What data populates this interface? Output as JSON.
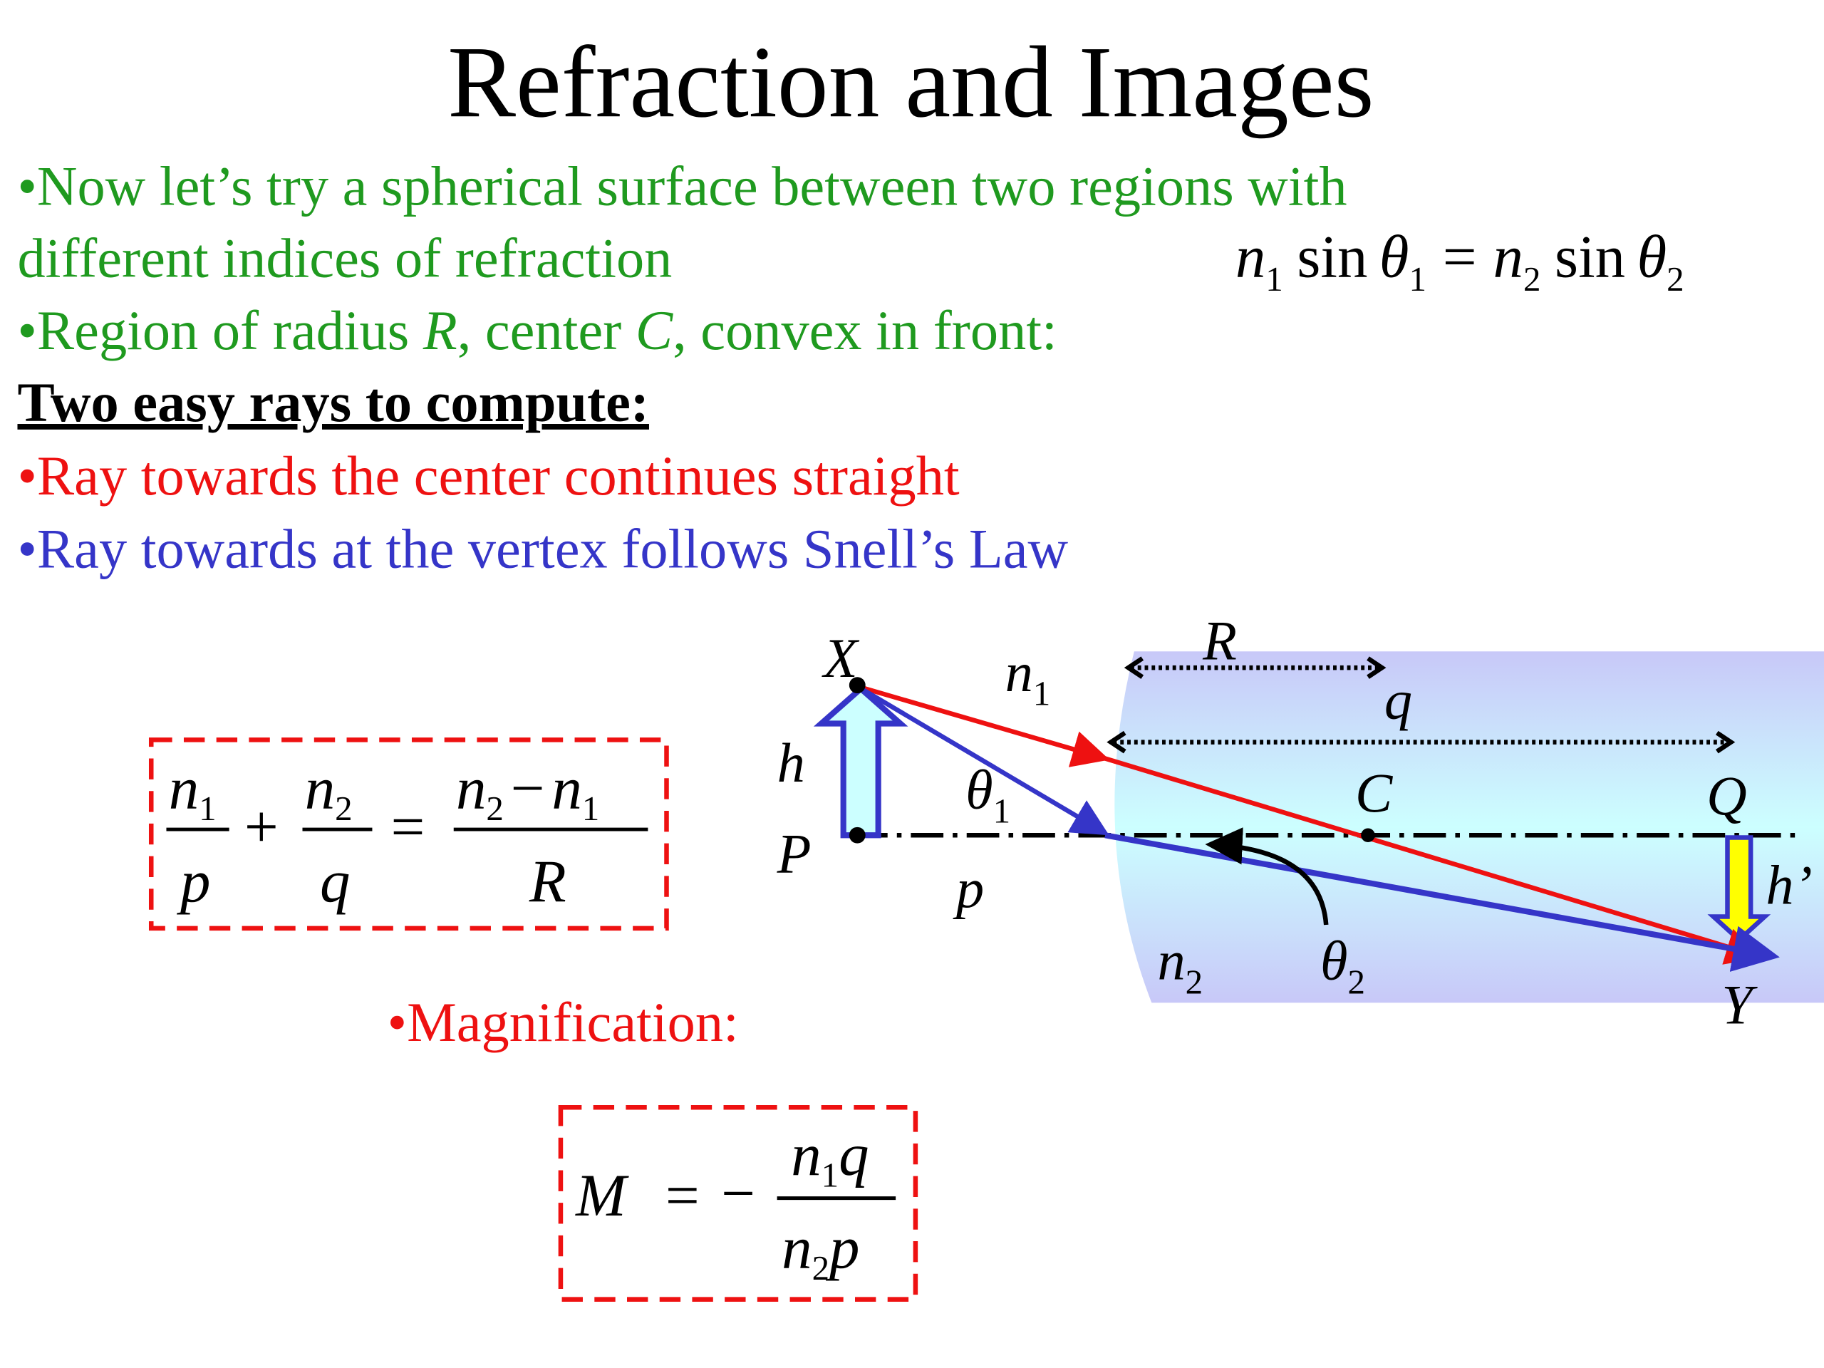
{
  "title": "Refraction and Images",
  "colors": {
    "green": "#1f9a1f",
    "red": "#ee1111",
    "blue": "#3535c8",
    "region_edge": "#c8c8f8",
    "region_mid": "#ccffff",
    "image_arrow": "#ffff00"
  },
  "bullets": {
    "line1": "•Now let’s try a spherical surface between two regions with",
    "line2": "different indices of refraction",
    "line3_a": "•Region of radius ",
    "line3_R": "R",
    "line3_b": ", center ",
    "line3_C": "C",
    "line3_c": ", convex in front:",
    "heading": "Two easy rays to compute:",
    "red_ray": "•Ray towards the center continues straight",
    "blue_ray": "•Ray towards at the vertex follows Snell’s Law",
    "magnification": "•Magnification:"
  },
  "snell": {
    "n": "n",
    "s1": "1",
    "sin": "sin",
    "theta": "θ",
    "eq": "=",
    "s2": "2"
  },
  "formula1": {
    "n": "n",
    "one": "1",
    "two": "2",
    "p": "p",
    "q": "q",
    "plus": "+",
    "eq": "=",
    "minus": "−",
    "R": "R"
  },
  "formula2": {
    "M": "M",
    "eq": "=",
    "minus": "−",
    "n": "n",
    "one": "1",
    "two": "2",
    "q": "q",
    "p": "p"
  },
  "diagram": {
    "X": "X",
    "Y": "Y",
    "P": "P",
    "Q": "Q",
    "C": "C",
    "R": "R",
    "q": "q",
    "p": "p",
    "h": "h",
    "h_prime": "h’",
    "n": "n",
    "one": "1",
    "two": "2",
    "theta": "θ"
  }
}
